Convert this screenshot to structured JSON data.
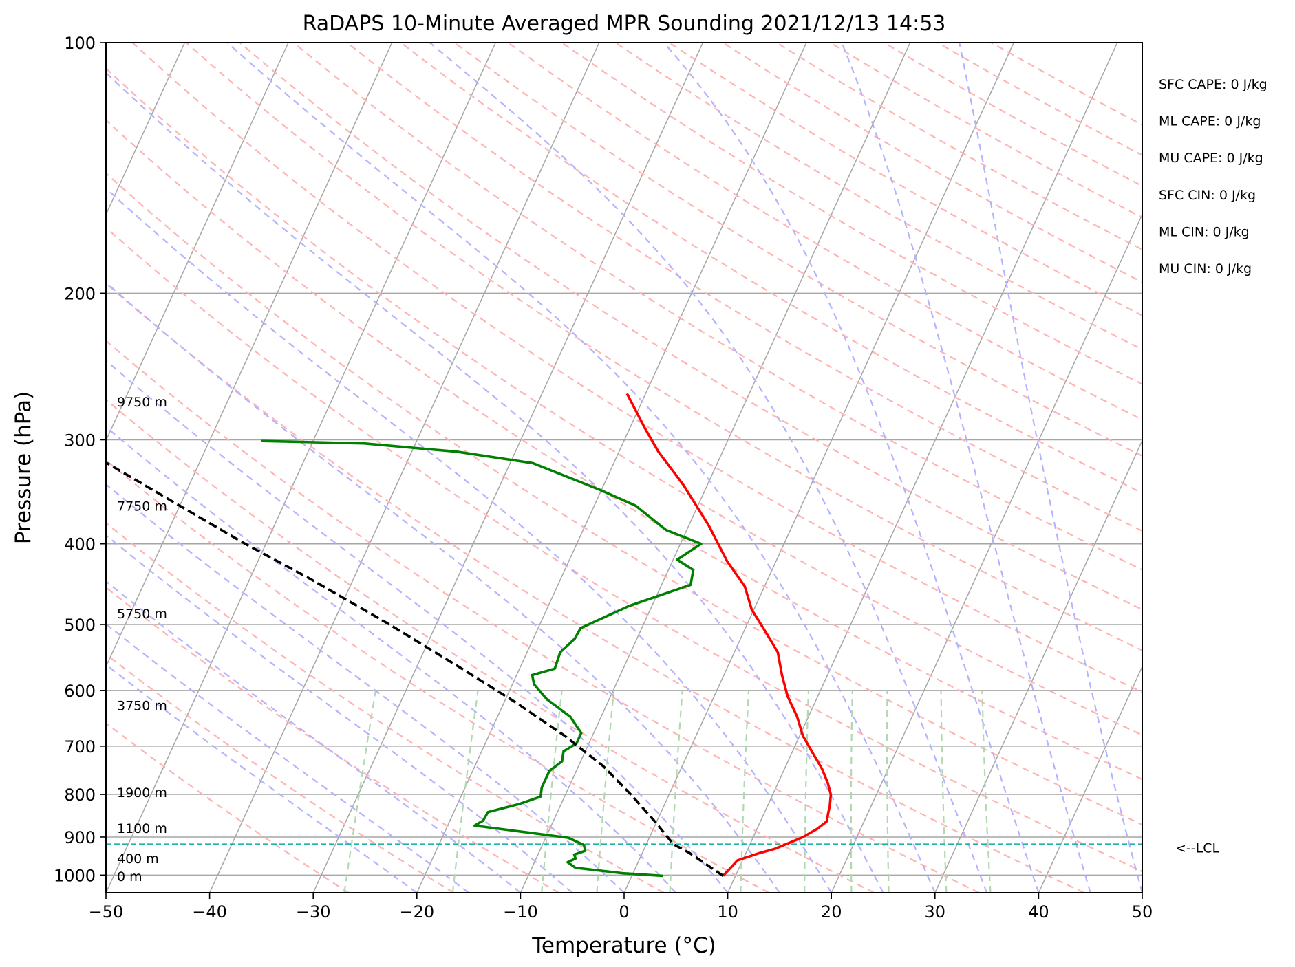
{
  "chart_data": {
    "type": "line",
    "title": "RaDAPS 10-Minute Averaged MPR Sounding 2021/12/13 14:53",
    "xlabel": "Temperature (°C)",
    "ylabel": "Pressure (hPa)",
    "xlim": [
      -50,
      50
    ],
    "ylim": [
      1050,
      100
    ],
    "y_scale": "log",
    "skew_t": true,
    "x_ticks": [
      "−50",
      "−40",
      "−30",
      "−20",
      "−10",
      "0",
      "10",
      "20",
      "30",
      "40",
      "50"
    ],
    "x_tick_values": [
      -50,
      -40,
      -30,
      -20,
      -10,
      0,
      10,
      20,
      30,
      40,
      50
    ],
    "y_ticks": [
      "100",
      "200",
      "300",
      "400",
      "500",
      "600",
      "700",
      "800",
      "900",
      "1000"
    ],
    "y_tick_values": [
      100,
      200,
      300,
      400,
      500,
      600,
      700,
      800,
      900,
      1000
    ],
    "grid": true,
    "series": [
      {
        "role": "temperature",
        "color": "#ff0000",
        "points": [
          [
            1002,
            8.8
          ],
          [
            985,
            9.1
          ],
          [
            960,
            9.5
          ],
          [
            942,
            11.2
          ],
          [
            930,
            12.6
          ],
          [
            915,
            13.7
          ],
          [
            900,
            14.8
          ],
          [
            880,
            15.8
          ],
          [
            862,
            16.4
          ],
          [
            845,
            16.2
          ],
          [
            825,
            16.0
          ],
          [
            800,
            15.6
          ],
          [
            775,
            14.8
          ],
          [
            745,
            13.6
          ],
          [
            715,
            12.1
          ],
          [
            680,
            10.3
          ],
          [
            645,
            8.9
          ],
          [
            610,
            7.1
          ],
          [
            575,
            5.6
          ],
          [
            540,
            4.2
          ],
          [
            510,
            2.1
          ],
          [
            480,
            -0.2
          ],
          [
            450,
            -1.9
          ],
          [
            420,
            -4.7
          ],
          [
            380,
            -8.1
          ],
          [
            340,
            -12.3
          ],
          [
            310,
            -16.2
          ],
          [
            290,
            -18.6
          ],
          [
            264,
            -21.8
          ]
        ]
      },
      {
        "role": "dewpoint",
        "color": "#008000",
        "points": [
          [
            1002,
            3.0
          ],
          [
            995,
            -1.0
          ],
          [
            980,
            -5.8
          ],
          [
            965,
            -6.8
          ],
          [
            955,
            -6.2
          ],
          [
            945,
            -6.5
          ],
          [
            935,
            -5.6
          ],
          [
            920,
            -6.0
          ],
          [
            902,
            -7.8
          ],
          [
            885,
            -13.2
          ],
          [
            872,
            -17.4
          ],
          [
            860,
            -16.8
          ],
          [
            840,
            -16.7
          ],
          [
            822,
            -14.1
          ],
          [
            805,
            -12.3
          ],
          [
            785,
            -12.6
          ],
          [
            750,
            -12.6
          ],
          [
            730,
            -11.8
          ],
          [
            710,
            -12.1
          ],
          [
            695,
            -11.2
          ],
          [
            675,
            -11.2
          ],
          [
            645,
            -13.0
          ],
          [
            615,
            -16.0
          ],
          [
            590,
            -17.9
          ],
          [
            575,
            -18.5
          ],
          [
            565,
            -16.6
          ],
          [
            540,
            -16.8
          ],
          [
            520,
            -16.0
          ],
          [
            505,
            -15.9
          ],
          [
            475,
            -12.2
          ],
          [
            448,
            -7.2
          ],
          [
            430,
            -7.6
          ],
          [
            418,
            -9.6
          ],
          [
            400,
            -8.0
          ],
          [
            385,
            -12.0
          ],
          [
            360,
            -16.0
          ],
          [
            345,
            -20.0
          ],
          [
            320,
            -27.8
          ],
          [
            310,
            -35.7
          ],
          [
            303,
            -45.0
          ],
          [
            301,
            -55.0
          ]
        ]
      },
      {
        "role": "parcel-path",
        "color": "#000000",
        "dashed": true,
        "points": [
          [
            1002,
            8.8
          ],
          [
            940,
            4.5
          ],
          [
            918,
            2.6
          ],
          [
            860,
            -0.3
          ],
          [
            800,
            -3.7
          ],
          [
            740,
            -7.6
          ],
          [
            680,
            -12.7
          ],
          [
            620,
            -18.9
          ],
          [
            560,
            -26.2
          ],
          [
            500,
            -34.5
          ],
          [
            440,
            -44.3
          ],
          [
            400,
            -52.0
          ],
          [
            360,
            -60.0
          ],
          [
            320,
            -68.9
          ],
          [
            300,
            -74.0
          ],
          [
            270,
            -81.8
          ]
        ]
      }
    ],
    "lcl_pressure": 918,
    "lcl_label": "<--LCL",
    "height_labels": [
      {
        "label": "9750 m",
        "p": 270
      },
      {
        "label": "7750 m",
        "p": 360
      },
      {
        "label": "5750 m",
        "p": 485
      },
      {
        "label": "3750 m",
        "p": 625
      },
      {
        "label": "1900 m",
        "p": 795
      },
      {
        "label": "1100 m",
        "p": 878
      },
      {
        "label": "400 m",
        "p": 955
      },
      {
        "label": "0 m",
        "p": 1003
      }
    ],
    "indices": [
      "SFC CAPE: 0 J/kg",
      "ML CAPE: 0 J/kg",
      "MU CAPE: 0 J/kg",
      "SFC CIN: 0 J/kg",
      "ML CIN: 0 J/kg",
      "MU CIN: 0 J/kg"
    ],
    "colors": {
      "isotherm": "#a6a6a6",
      "dry_adiabat": "#ffb3b3",
      "moist_adiabat": "#b3b3ff",
      "mixing_ratio": "#b0d9b0",
      "lcl": "#20b2aa"
    }
  }
}
